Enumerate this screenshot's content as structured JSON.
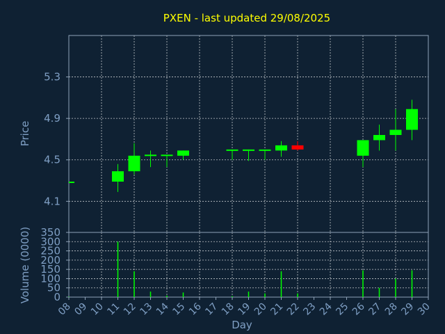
{
  "chart_data": [
    {
      "type": "candlestick",
      "title": "PXEN - last updated 29/08/2025",
      "ylabel": "Price",
      "ylim": [
        3.8,
        5.7
      ],
      "yticks": [
        "4.1",
        "4.5",
        "4.9",
        "5.3"
      ],
      "categories": [
        "08",
        "09",
        "10",
        "11",
        "12",
        "13",
        "14",
        "15",
        "16",
        "17",
        "18",
        "19",
        "20",
        "21",
        "22",
        "23",
        "24",
        "25",
        "26",
        "27",
        "28",
        "29",
        "30"
      ],
      "candles": [
        {
          "day": "08",
          "open": 4.29,
          "close": 4.29,
          "high": 4.29,
          "low": 4.29
        },
        {
          "day": "11",
          "open": 4.29,
          "close": 4.39,
          "high": 4.46,
          "low": 4.19
        },
        {
          "day": "12",
          "open": 4.39,
          "close": 4.54,
          "high": 4.66,
          "low": 4.36
        },
        {
          "day": "13",
          "open": 4.54,
          "close": 4.55,
          "high": 4.59,
          "low": 4.43
        },
        {
          "day": "14",
          "open": 4.54,
          "close": 4.55,
          "high": 4.55,
          "low": 4.43
        },
        {
          "day": "15",
          "open": 4.54,
          "close": 4.59,
          "high": 4.59,
          "low": 4.5
        },
        {
          "day": "18",
          "open": 4.59,
          "close": 4.6,
          "high": 4.6,
          "low": 4.5
        },
        {
          "day": "19",
          "open": 4.59,
          "close": 4.6,
          "high": 4.6,
          "low": 4.49
        },
        {
          "day": "20",
          "open": 4.59,
          "close": 4.6,
          "high": 4.6,
          "low": 4.5
        },
        {
          "day": "21",
          "open": 4.59,
          "close": 4.64,
          "high": 4.68,
          "low": 4.53
        },
        {
          "day": "22",
          "open": 4.64,
          "close": 4.6,
          "high": 4.68,
          "low": 4.59
        },
        {
          "day": "26",
          "open": 4.54,
          "close": 4.69,
          "high": 4.69,
          "low": 4.43
        },
        {
          "day": "27",
          "open": 4.69,
          "close": 4.74,
          "high": 4.84,
          "low": 4.59
        },
        {
          "day": "28",
          "open": 4.74,
          "close": 4.79,
          "high": 4.99,
          "low": 4.59
        },
        {
          "day": "29",
          "open": 4.79,
          "close": 4.99,
          "high": 5.08,
          "low": 4.69
        }
      ],
      "up_color": "#00ff00",
      "down_color": "#ff0000",
      "grid": true
    },
    {
      "type": "bar",
      "ylabel": "Volume (0000)",
      "xlabel": "Day",
      "ylim": [
        0,
        350
      ],
      "yticks": [
        "0",
        "50",
        "100",
        "150",
        "200",
        "250",
        "300",
        "350"
      ],
      "categories": [
        "08",
        "09",
        "10",
        "11",
        "12",
        "13",
        "14",
        "15",
        "16",
        "17",
        "18",
        "19",
        "20",
        "21",
        "22",
        "23",
        "24",
        "25",
        "26",
        "27",
        "28",
        "29",
        "30"
      ],
      "bars": [
        {
          "day": "08",
          "value": 2
        },
        {
          "day": "11",
          "value": 300
        },
        {
          "day": "12",
          "value": 140
        },
        {
          "day": "13",
          "value": 30
        },
        {
          "day": "14",
          "value": 8
        },
        {
          "day": "15",
          "value": 25
        },
        {
          "day": "18",
          "value": 5
        },
        {
          "day": "19",
          "value": 30
        },
        {
          "day": "20",
          "value": 20
        },
        {
          "day": "21",
          "value": 140
        },
        {
          "day": "22",
          "value": 20
        },
        {
          "day": "26",
          "value": 145
        },
        {
          "day": "27",
          "value": 50
        },
        {
          "day": "28",
          "value": 100
        },
        {
          "day": "29",
          "value": 145
        }
      ],
      "bar_color": "#00ff00",
      "grid": true
    }
  ]
}
